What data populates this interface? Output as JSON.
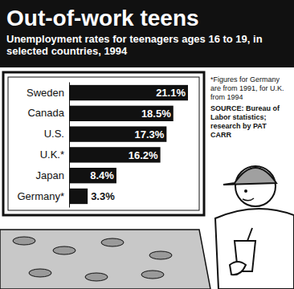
{
  "chart_data": {
    "type": "bar",
    "orientation": "horizontal",
    "title": "Out-of-work teens",
    "subtitle": "Unemployment rates for teenagers ages 16 to 19, in selected countries, 1994",
    "categories": [
      "Sweden",
      "Canada",
      "U.S.",
      "U.K.*",
      "Japan",
      "Germany*"
    ],
    "values": [
      21.1,
      18.5,
      17.3,
      16.2,
      8.4,
      3.3
    ],
    "value_labels": [
      "21.1%",
      "18.5%",
      "17.3%",
      "16.2%",
      "8.4%",
      "3.3%"
    ],
    "data_labels": true,
    "color": "#111111",
    "xlim": [
      0,
      21.1
    ],
    "tick_labels": "y",
    "grid": false,
    "annotations": [
      "*Figures for Germany are from 1991, for U.K. from 1994",
      "SOURCE: Bureau of Labor statistics; research by PAT CARR"
    ]
  }
}
